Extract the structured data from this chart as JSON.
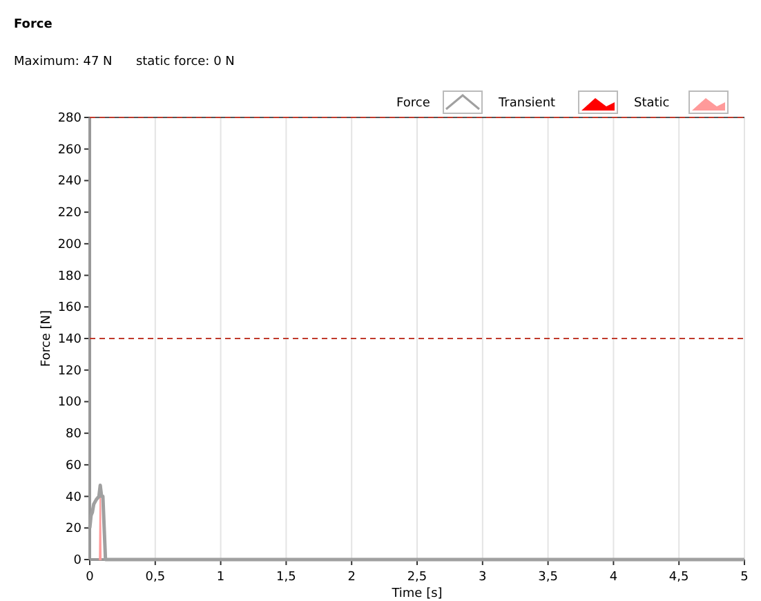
{
  "chart_data": {
    "type": "line",
    "title": "Force",
    "subtitle": "Maximum: 47 N      static force: 0 N",
    "xlabel": "Time [s]",
    "ylabel": "Force [N]",
    "xlim": [
      0,
      5
    ],
    "ylim": [
      0,
      280
    ],
    "xticks": [
      0,
      {
        "value": 0.5,
        "label": "0,5"
      },
      1,
      {
        "value": 1.5,
        "label": "1,5"
      },
      2,
      {
        "value": 2.5,
        "label": "2,5"
      },
      3,
      {
        "value": 3.5,
        "label": "3,5"
      },
      4,
      {
        "value": 4.5,
        "label": "4,5"
      },
      5
    ],
    "yticks": [
      0,
      20,
      40,
      60,
      80,
      100,
      120,
      140,
      160,
      180,
      200,
      220,
      240,
      260,
      280
    ],
    "grid": "x",
    "legend": "top right",
    "ref_lines": [
      {
        "axis": "y",
        "value": 280,
        "color": "#c0392b",
        "line_style": "dashed"
      },
      {
        "axis": "y",
        "value": 140,
        "color": "#c0392b",
        "line_style": "dashed"
      }
    ],
    "series": [
      {
        "name": "Force",
        "color": "#a0a0a0",
        "x": [
          0,
          0.01,
          0.02,
          0.03,
          0.05,
          0.07,
          0.08,
          0.09,
          0.1,
          0.12,
          5
        ],
        "values": [
          20,
          28,
          30,
          35,
          38,
          40,
          47,
          40,
          40,
          0,
          0
        ]
      },
      {
        "name": "Transient",
        "type": "area",
        "color": "#ff0000"
      },
      {
        "name": "Static",
        "type": "area",
        "color": "#ff9a9a",
        "x": [
          0.075,
          0.08,
          0.085
        ],
        "values": [
          0,
          40,
          0
        ]
      }
    ]
  }
}
